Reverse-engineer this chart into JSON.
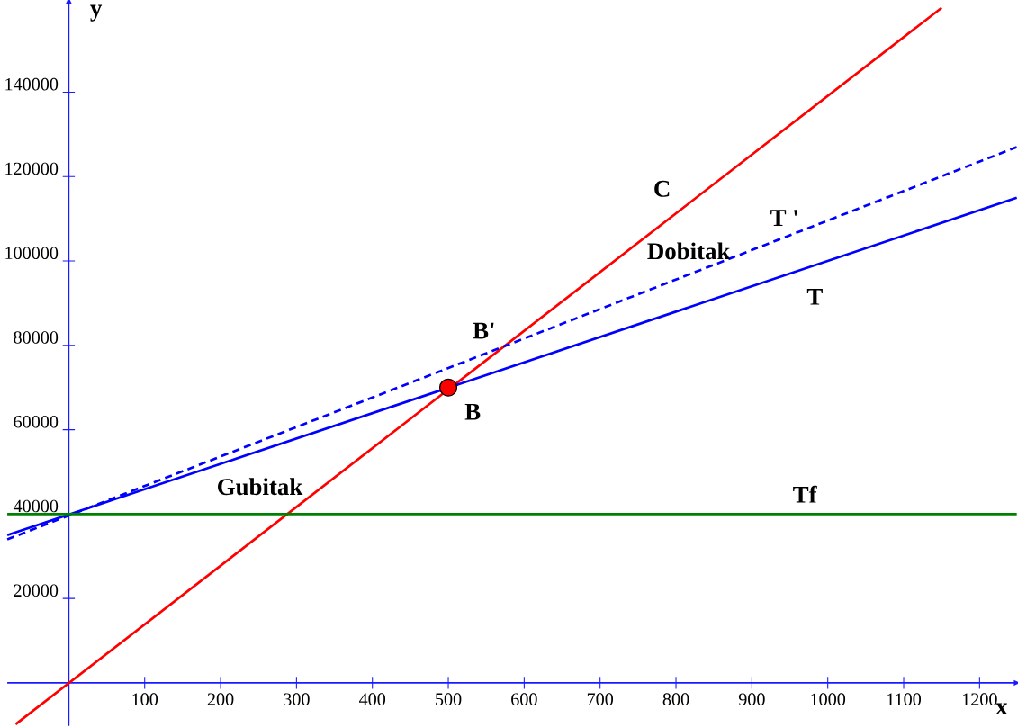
{
  "chart_data": {
    "type": "line",
    "xlabel": "x",
    "ylabel": "y",
    "xlim": [
      -81,
      1249
    ],
    "ylim": [
      -10200,
      161700
    ],
    "xticks": [
      100,
      200,
      300,
      400,
      500,
      600,
      700,
      800,
      900,
      1000,
      1100,
      1200
    ],
    "yticks": [
      20000,
      40000,
      60000,
      80000,
      100000,
      120000,
      140000
    ],
    "grid": false,
    "legend": false,
    "series": [
      {
        "name": "C",
        "color": "#ff0000",
        "x": [
          -70,
          1150
        ],
        "values": [
          -9800,
          160000
        ],
        "line_style": "solid",
        "marker": "none"
      },
      {
        "name": "T '",
        "color": "#0000ff",
        "x": [
          -81,
          1249
        ],
        "values": [
          34000,
          127000
        ],
        "line_style": "dashed",
        "marker": "none"
      },
      {
        "name": "T",
        "color": "#0000ff",
        "x": [
          -81,
          1249
        ],
        "values": [
          35000,
          115000
        ],
        "line_style": "solid",
        "marker": "none"
      },
      {
        "name": "Tf",
        "color": "#008000",
        "x": [
          -81,
          1249
        ],
        "values": [
          40000,
          40000
        ],
        "line_style": "solid",
        "marker": "none"
      },
      {
        "name": "B",
        "type": "scatter",
        "color": "#ff0000",
        "x": [
          500
        ],
        "values": [
          70000
        ],
        "marker": "circle"
      }
    ],
    "annotations": [
      {
        "text": "B'",
        "x": 571,
        "y": 80000
      },
      "Dobitak",
      "Gubitak"
    ]
  }
}
